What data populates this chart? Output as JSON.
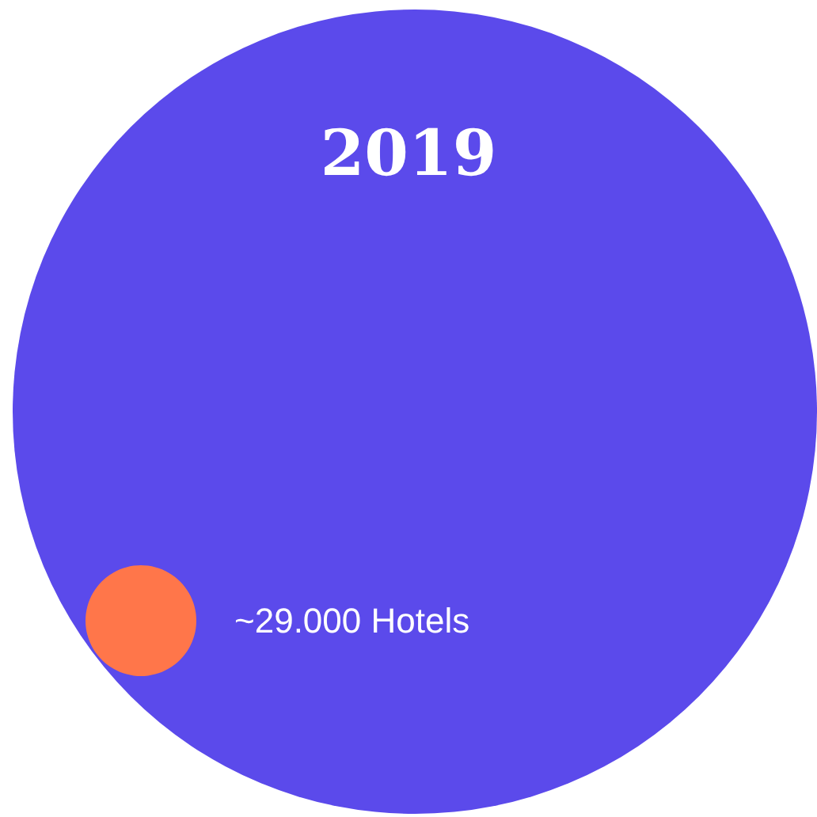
{
  "chart_data": {
    "type": "other",
    "title": "2019",
    "categories": [
      null
    ],
    "values": [
      29000
    ],
    "value_labels": [
      "~29.000 Hotels"
    ],
    "colors": [
      "#ff764a"
    ],
    "color": "#5b4aeb"
  }
}
